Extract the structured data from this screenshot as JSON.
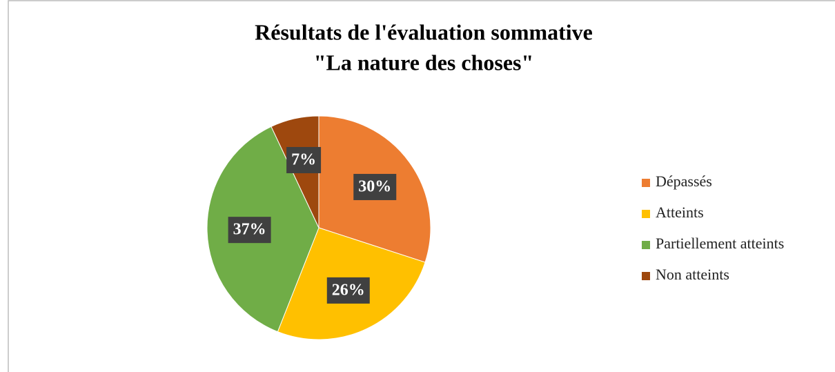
{
  "chart_data": {
    "type": "pie",
    "title": [
      "Résultats de l'évaluation sommative",
      "\"La nature des choses\""
    ],
    "categories": [
      "Dépassés",
      "Atteints",
      "Partiellement atteints",
      "Non atteints"
    ],
    "values": [
      30,
      26,
      37,
      7
    ],
    "value_labels": [
      "30%",
      "26%",
      "37%",
      "7%"
    ],
    "colors": [
      "#ed7d31",
      "#ffc000",
      "#70ad47",
      "#9e480e"
    ],
    "legend": "right"
  }
}
